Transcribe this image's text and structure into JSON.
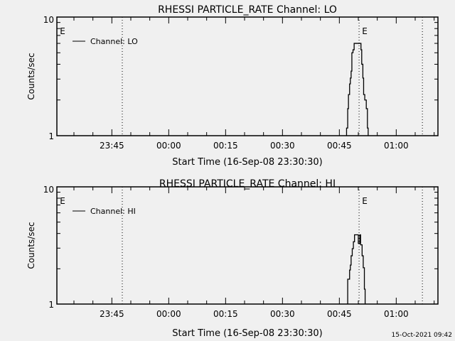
{
  "colors": {
    "background": "#f0f0f0",
    "foreground": "#000000"
  },
  "footer_timestamp": "15-Oct-2021 09:42",
  "chart_data": [
    {
      "type": "line",
      "title": "RHESSI PARTICLE_RATE Channel: LO",
      "xlabel": "Start Time (16-Sep-08 23:30:30)",
      "ylabel": "Counts/sec",
      "yscale": "log",
      "ylim": [
        1,
        10
      ],
      "ytick_labels": [
        "1",
        "10"
      ],
      "x_units": "minutes since 23:30:30",
      "xlim": [
        0,
        100.5
      ],
      "xticks": [
        {
          "t": 14.5,
          "label": "23:45"
        },
        {
          "t": 29.5,
          "label": "00:00"
        },
        {
          "t": 44.5,
          "label": "00:15"
        },
        {
          "t": 59.5,
          "label": "00:30"
        },
        {
          "t": 74.5,
          "label": "00:45"
        },
        {
          "t": 89.5,
          "label": "01:00"
        }
      ],
      "legend": {
        "label": "Channel: LO",
        "placement": "top-left"
      },
      "markers": [
        {
          "t": 0.6,
          "label": "E"
        },
        {
          "t": 80.3,
          "label": "E"
        }
      ],
      "vlines_dotted": [
        17.25,
        79.7,
        96.4
      ],
      "series": [
        {
          "name": "Channel: LO",
          "step": [
            [
              76.4,
              1.16
            ],
            [
              76.7,
              1.69
            ],
            [
              76.9,
              2.22
            ],
            [
              77.2,
              2.73
            ],
            [
              77.4,
              3.06
            ],
            [
              77.6,
              3.5
            ],
            [
              77.8,
              5.0
            ],
            [
              78.1,
              5.3
            ],
            [
              78.4,
              6.0
            ],
            [
              80.2,
              5.3
            ],
            [
              80.4,
              4.0
            ],
            [
              80.7,
              3.06
            ],
            [
              80.9,
              2.22
            ],
            [
              81.2,
              2.0
            ],
            [
              81.6,
              1.69
            ],
            [
              81.9,
              1.16
            ],
            [
              82.1,
              1.0
            ]
          ]
        }
      ]
    },
    {
      "type": "line",
      "title": "RHESSI PARTICLE_RATE Channel: HI",
      "xlabel": "Start Time (16-Sep-08 23:30:30)",
      "ylabel": "Counts/sec",
      "yscale": "log",
      "ylim": [
        1,
        10
      ],
      "ytick_labels": [
        "1",
        "10"
      ],
      "x_units": "minutes since 23:30:30",
      "xlim": [
        0,
        100.5
      ],
      "xticks": [
        {
          "t": 14.5,
          "label": "23:45"
        },
        {
          "t": 29.5,
          "label": "00:00"
        },
        {
          "t": 44.5,
          "label": "00:15"
        },
        {
          "t": 59.5,
          "label": "00:30"
        },
        {
          "t": 74.5,
          "label": "00:45"
        },
        {
          "t": 89.5,
          "label": "01:00"
        }
      ],
      "legend": {
        "label": "Channel: HI",
        "placement": "top-left"
      },
      "markers": [
        {
          "t": 0.6,
          "label": "E"
        },
        {
          "t": 80.3,
          "label": "E"
        }
      ],
      "vlines_dotted": [
        17.25,
        79.7,
        96.4
      ],
      "series": [
        {
          "name": "Channel: HI",
          "step": [
            [
              76.7,
              1.63
            ],
            [
              77.2,
              1.95
            ],
            [
              77.4,
              2.15
            ],
            [
              77.6,
              2.58
            ],
            [
              77.9,
              2.97
            ],
            [
              78.2,
              3.4
            ],
            [
              78.5,
              3.9
            ],
            [
              79.3,
              3.9
            ],
            [
              79.5,
              3.3
            ],
            [
              79.9,
              3.9
            ],
            [
              80.1,
              3.2
            ],
            [
              80.5,
              2.58
            ],
            [
              80.8,
              2.04
            ],
            [
              81.1,
              1.34
            ],
            [
              81.3,
              1.0
            ]
          ]
        }
      ]
    }
  ]
}
